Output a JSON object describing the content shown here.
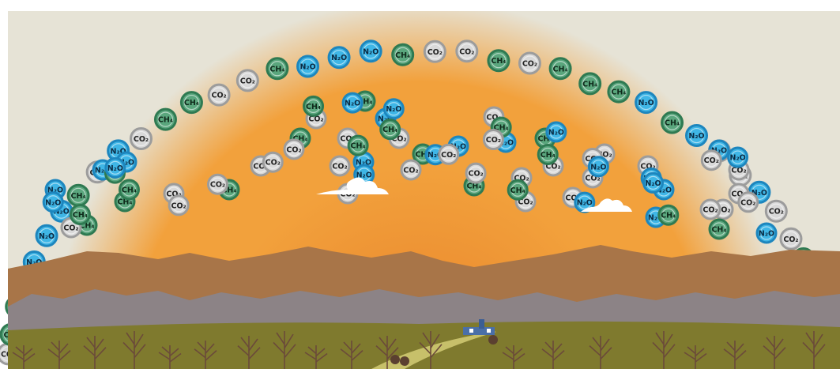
{
  "colors": {
    "sky_top": "#e6e3d6",
    "sky_orange": "#f2a13c",
    "sky_deep": "#e8822a",
    "co2_fill": "#d9d9d9",
    "co2_ring": "#9c9c9c",
    "ch4_fill": "#5aa67d",
    "ch4_ring": "#2f7a52",
    "n2o_fill": "#3fb6e6",
    "n2o_ring": "#1d86be",
    "mountain_brown": "#a87548",
    "mountain_gray": "#8c8386",
    "field": "#7f7a2e"
  },
  "molecule_labels": {
    "co2": "CO₂",
    "ch4": "CH₄",
    "n2o": "N₂O"
  },
  "dome_molecules": [
    {
      "type": "co2"
    },
    {
      "type": "ch4"
    },
    {
      "type": "ch4"
    },
    {
      "type": "n2o"
    },
    {
      "type": "n2o"
    },
    {
      "type": "n2o"
    },
    {
      "type": "n2o"
    },
    {
      "type": "ch4"
    },
    {
      "type": "co2"
    },
    {
      "type": "n2o"
    },
    {
      "type": "co2"
    },
    {
      "type": "ch4"
    },
    {
      "type": "ch4"
    },
    {
      "type": "co2"
    },
    {
      "type": "co2"
    },
    {
      "type": "ch4"
    },
    {
      "type": "n2o"
    },
    {
      "type": "n2o"
    },
    {
      "type": "n2o"
    },
    {
      "type": "ch4"
    },
    {
      "type": "co2"
    },
    {
      "type": "co2"
    },
    {
      "type": "ch4"
    },
    {
      "type": "co2"
    },
    {
      "type": "ch4"
    },
    {
      "type": "ch4"
    },
    {
      "type": "ch4"
    },
    {
      "type": "n2o"
    },
    {
      "type": "ch4"
    },
    {
      "type": "n2o"
    },
    {
      "type": "co2"
    },
    {
      "type": "co2"
    },
    {
      "type": "n2o"
    },
    {
      "type": "co2"
    },
    {
      "type": "co2"
    },
    {
      "type": "ch4"
    },
    {
      "type": "co2"
    },
    {
      "type": "ch4"
    },
    {
      "type": "ch4"
    },
    {
      "type": "ch4"
    }
  ],
  "floating_molecules": [
    {
      "type": "n2o"
    },
    {
      "type": "ch4"
    },
    {
      "type": "n2o"
    },
    {
      "type": "n2o"
    },
    {
      "type": "ch4"
    },
    {
      "type": "co2"
    },
    {
      "type": "ch4"
    },
    {
      "type": "co2"
    },
    {
      "type": "ch4"
    },
    {
      "type": "co2"
    },
    {
      "type": "co2"
    },
    {
      "type": "ch4"
    },
    {
      "type": "n2o"
    },
    {
      "type": "n2o"
    },
    {
      "type": "co2"
    },
    {
      "type": "ch4"
    },
    {
      "type": "n2o"
    },
    {
      "type": "ch4"
    },
    {
      "type": "co2"
    },
    {
      "type": "n2o"
    },
    {
      "type": "ch4"
    },
    {
      "type": "co2"
    },
    {
      "type": "co2"
    },
    {
      "type": "co2"
    },
    {
      "type": "co2"
    },
    {
      "type": "co2"
    },
    {
      "type": "co2"
    },
    {
      "type": "n2o"
    },
    {
      "type": "n2o"
    },
    {
      "type": "n2o"
    },
    {
      "type": "co2"
    },
    {
      "type": "co2"
    },
    {
      "type": "co2"
    },
    {
      "type": "ch4"
    },
    {
      "type": "n2o"
    },
    {
      "type": "co2"
    },
    {
      "type": "co2"
    },
    {
      "type": "co2"
    },
    {
      "type": "co2"
    },
    {
      "type": "co2"
    },
    {
      "type": "n2o"
    },
    {
      "type": "ch4"
    },
    {
      "type": "ch4"
    },
    {
      "type": "n2o"
    },
    {
      "type": "ch4"
    },
    {
      "type": "co2"
    },
    {
      "type": "co2"
    },
    {
      "type": "co2"
    },
    {
      "type": "co2"
    },
    {
      "type": "ch4"
    },
    {
      "type": "ch4"
    },
    {
      "type": "n2o"
    },
    {
      "type": "n2o"
    },
    {
      "type": "n2o"
    },
    {
      "type": "ch4"
    },
    {
      "type": "n2o"
    },
    {
      "type": "co2"
    },
    {
      "type": "co2"
    },
    {
      "type": "ch4"
    },
    {
      "type": "co2"
    },
    {
      "type": "n2o"
    },
    {
      "type": "ch4"
    },
    {
      "type": "ch4"
    },
    {
      "type": "n2o"
    },
    {
      "type": "co2"
    },
    {
      "type": "n2o"
    },
    {
      "type": "n2o"
    },
    {
      "type": "n2o"
    },
    {
      "type": "ch4"
    },
    {
      "type": "co2"
    },
    {
      "type": "n2o"
    },
    {
      "type": "co2"
    },
    {
      "type": "co2"
    }
  ]
}
